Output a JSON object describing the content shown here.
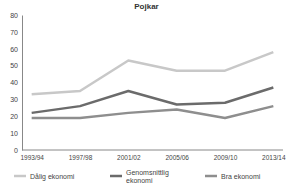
{
  "chart_data": {
    "type": "line",
    "title": "Pojkar",
    "categories": [
      "1993/94",
      "1997/98",
      "2001/02",
      "2005/06",
      "2009/10",
      "2013/14"
    ],
    "series": [
      {
        "name": "Dålig ekonomi",
        "color": "#c8c8c8",
        "values": [
          33,
          35,
          53,
          47,
          47,
          58
        ]
      },
      {
        "name": "Genomsnittlig ekonomi",
        "color": "#6b6b6b",
        "values": [
          22,
          26,
          35,
          27,
          28,
          37
        ]
      },
      {
        "name": "Bra ekonomi",
        "color": "#8e8e8e",
        "values": [
          19,
          19,
          22,
          24,
          19,
          26
        ]
      }
    ],
    "ylim": [
      0,
      80
    ],
    "yticks": [
      0,
      10,
      20,
      30,
      40,
      50,
      60,
      70,
      80
    ],
    "grid": false,
    "legend": "bottom"
  }
}
